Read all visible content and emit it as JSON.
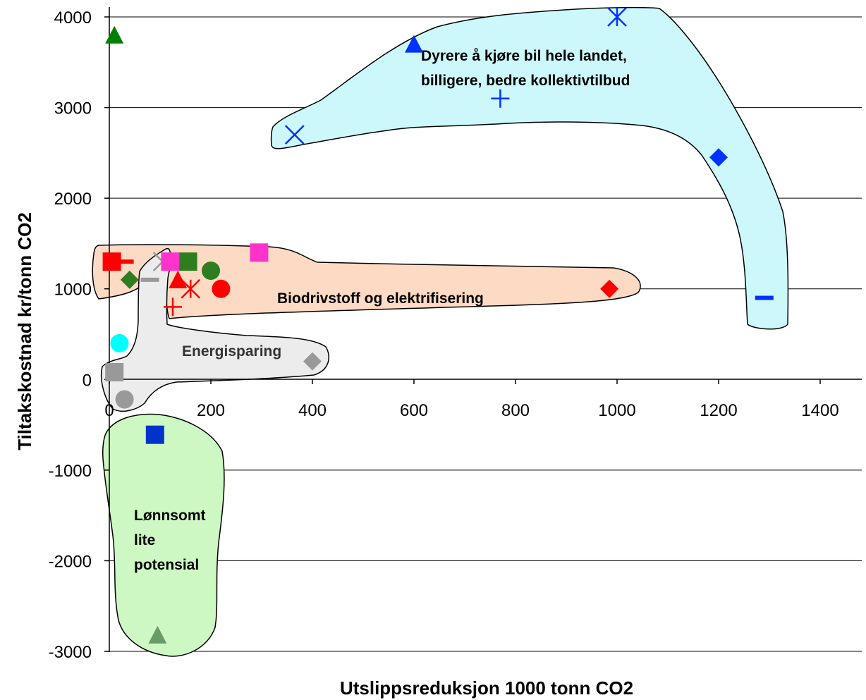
{
  "chart_data": {
    "type": "scatter",
    "xlabel": "Utslippsreduksjon 1000 tonn CO2",
    "ylabel": "Tiltakskostnad kr/tonn CO2",
    "xlim": [
      0,
      1400
    ],
    "ylim": [
      -3000,
      4000
    ],
    "x_ticks": [
      "0",
      "200",
      "400",
      "600",
      "800",
      "1000",
      "1200",
      "1400"
    ],
    "y_ticks": [
      "4000",
      "3000",
      "2000",
      "1000",
      "0",
      "-1000",
      "-2000",
      "-3000"
    ],
    "grid": "horizontal",
    "regions": [
      {
        "label_lines": [
          "Dyrere å kjøre bil hele landet,",
          "billigere, bedre kollektivtilbud"
        ],
        "color": "#ccf8fb"
      },
      {
        "label_lines": [
          "Biodrivstoff og elektrifisering"
        ],
        "color": "#fddac4"
      },
      {
        "label_lines": [
          "Energisparing"
        ],
        "color": "#ececec"
      },
      {
        "label_lines": [
          "Lønnsomt",
          "lite",
          "potensial"
        ],
        "color": "#cdf7c3"
      }
    ],
    "points": [
      {
        "x": 10,
        "y": 3800,
        "marker": "triangle",
        "color": "#008000"
      },
      {
        "x": 600,
        "y": 3700,
        "marker": "triangle",
        "color": "#0033ff"
      },
      {
        "x": 1000,
        "y": 4000,
        "marker": "asterisk",
        "color": "#0033ff"
      },
      {
        "x": 770,
        "y": 3100,
        "marker": "plus",
        "color": "#0033ff"
      },
      {
        "x": 365,
        "y": 2700,
        "marker": "x",
        "color": "#0033ff"
      },
      {
        "x": 1200,
        "y": 2450,
        "marker": "diamond",
        "color": "#0033ff"
      },
      {
        "x": 1290,
        "y": 900,
        "marker": "dash",
        "color": "#0033ff"
      },
      {
        "x": 295,
        "y": 1400,
        "marker": "square",
        "color": "#ff33cc"
      },
      {
        "x": 5,
        "y": 1300,
        "marker": "square",
        "color": "#ff0000"
      },
      {
        "x": 30,
        "y": 1300,
        "marker": "dash",
        "color": "#ff0000"
      },
      {
        "x": 155,
        "y": 1300,
        "marker": "square",
        "color": "#2e7d1e"
      },
      {
        "x": 200,
        "y": 1200,
        "marker": "circle",
        "color": "#2e7d1e"
      },
      {
        "x": 40,
        "y": 1100,
        "marker": "diamond",
        "color": "#2e7d1e"
      },
      {
        "x": 80,
        "y": 1100,
        "marker": "dash",
        "color": "#999999"
      },
      {
        "x": 105,
        "y": 1300,
        "marker": "asterisk",
        "color": "#999999"
      },
      {
        "x": 120,
        "y": 1300,
        "marker": "square",
        "color": "#ff33cc"
      },
      {
        "x": 135,
        "y": 1100,
        "marker": "triangle",
        "color": "#ff0000"
      },
      {
        "x": 160,
        "y": 1000,
        "marker": "asterisk",
        "color": "#ff0000"
      },
      {
        "x": 220,
        "y": 1000,
        "marker": "circle",
        "color": "#ff0000"
      },
      {
        "x": 125,
        "y": 800,
        "marker": "plus",
        "color": "#ff0000"
      },
      {
        "x": 985,
        "y": 1000,
        "marker": "diamond",
        "color": "#ff0000"
      },
      {
        "x": 20,
        "y": 400,
        "marker": "circle",
        "color": "#00ffff"
      },
      {
        "x": 400,
        "y": 200,
        "marker": "diamond",
        "color": "#999999"
      },
      {
        "x": 10,
        "y": 80,
        "marker": "square",
        "color": "#999999"
      },
      {
        "x": 30,
        "y": -220,
        "marker": "circle",
        "color": "#999999"
      },
      {
        "x": 90,
        "y": -610,
        "marker": "square",
        "color": "#0033cc"
      },
      {
        "x": 95,
        "y": -2820,
        "marker": "triangle",
        "color": "#6a9a6a"
      }
    ]
  }
}
